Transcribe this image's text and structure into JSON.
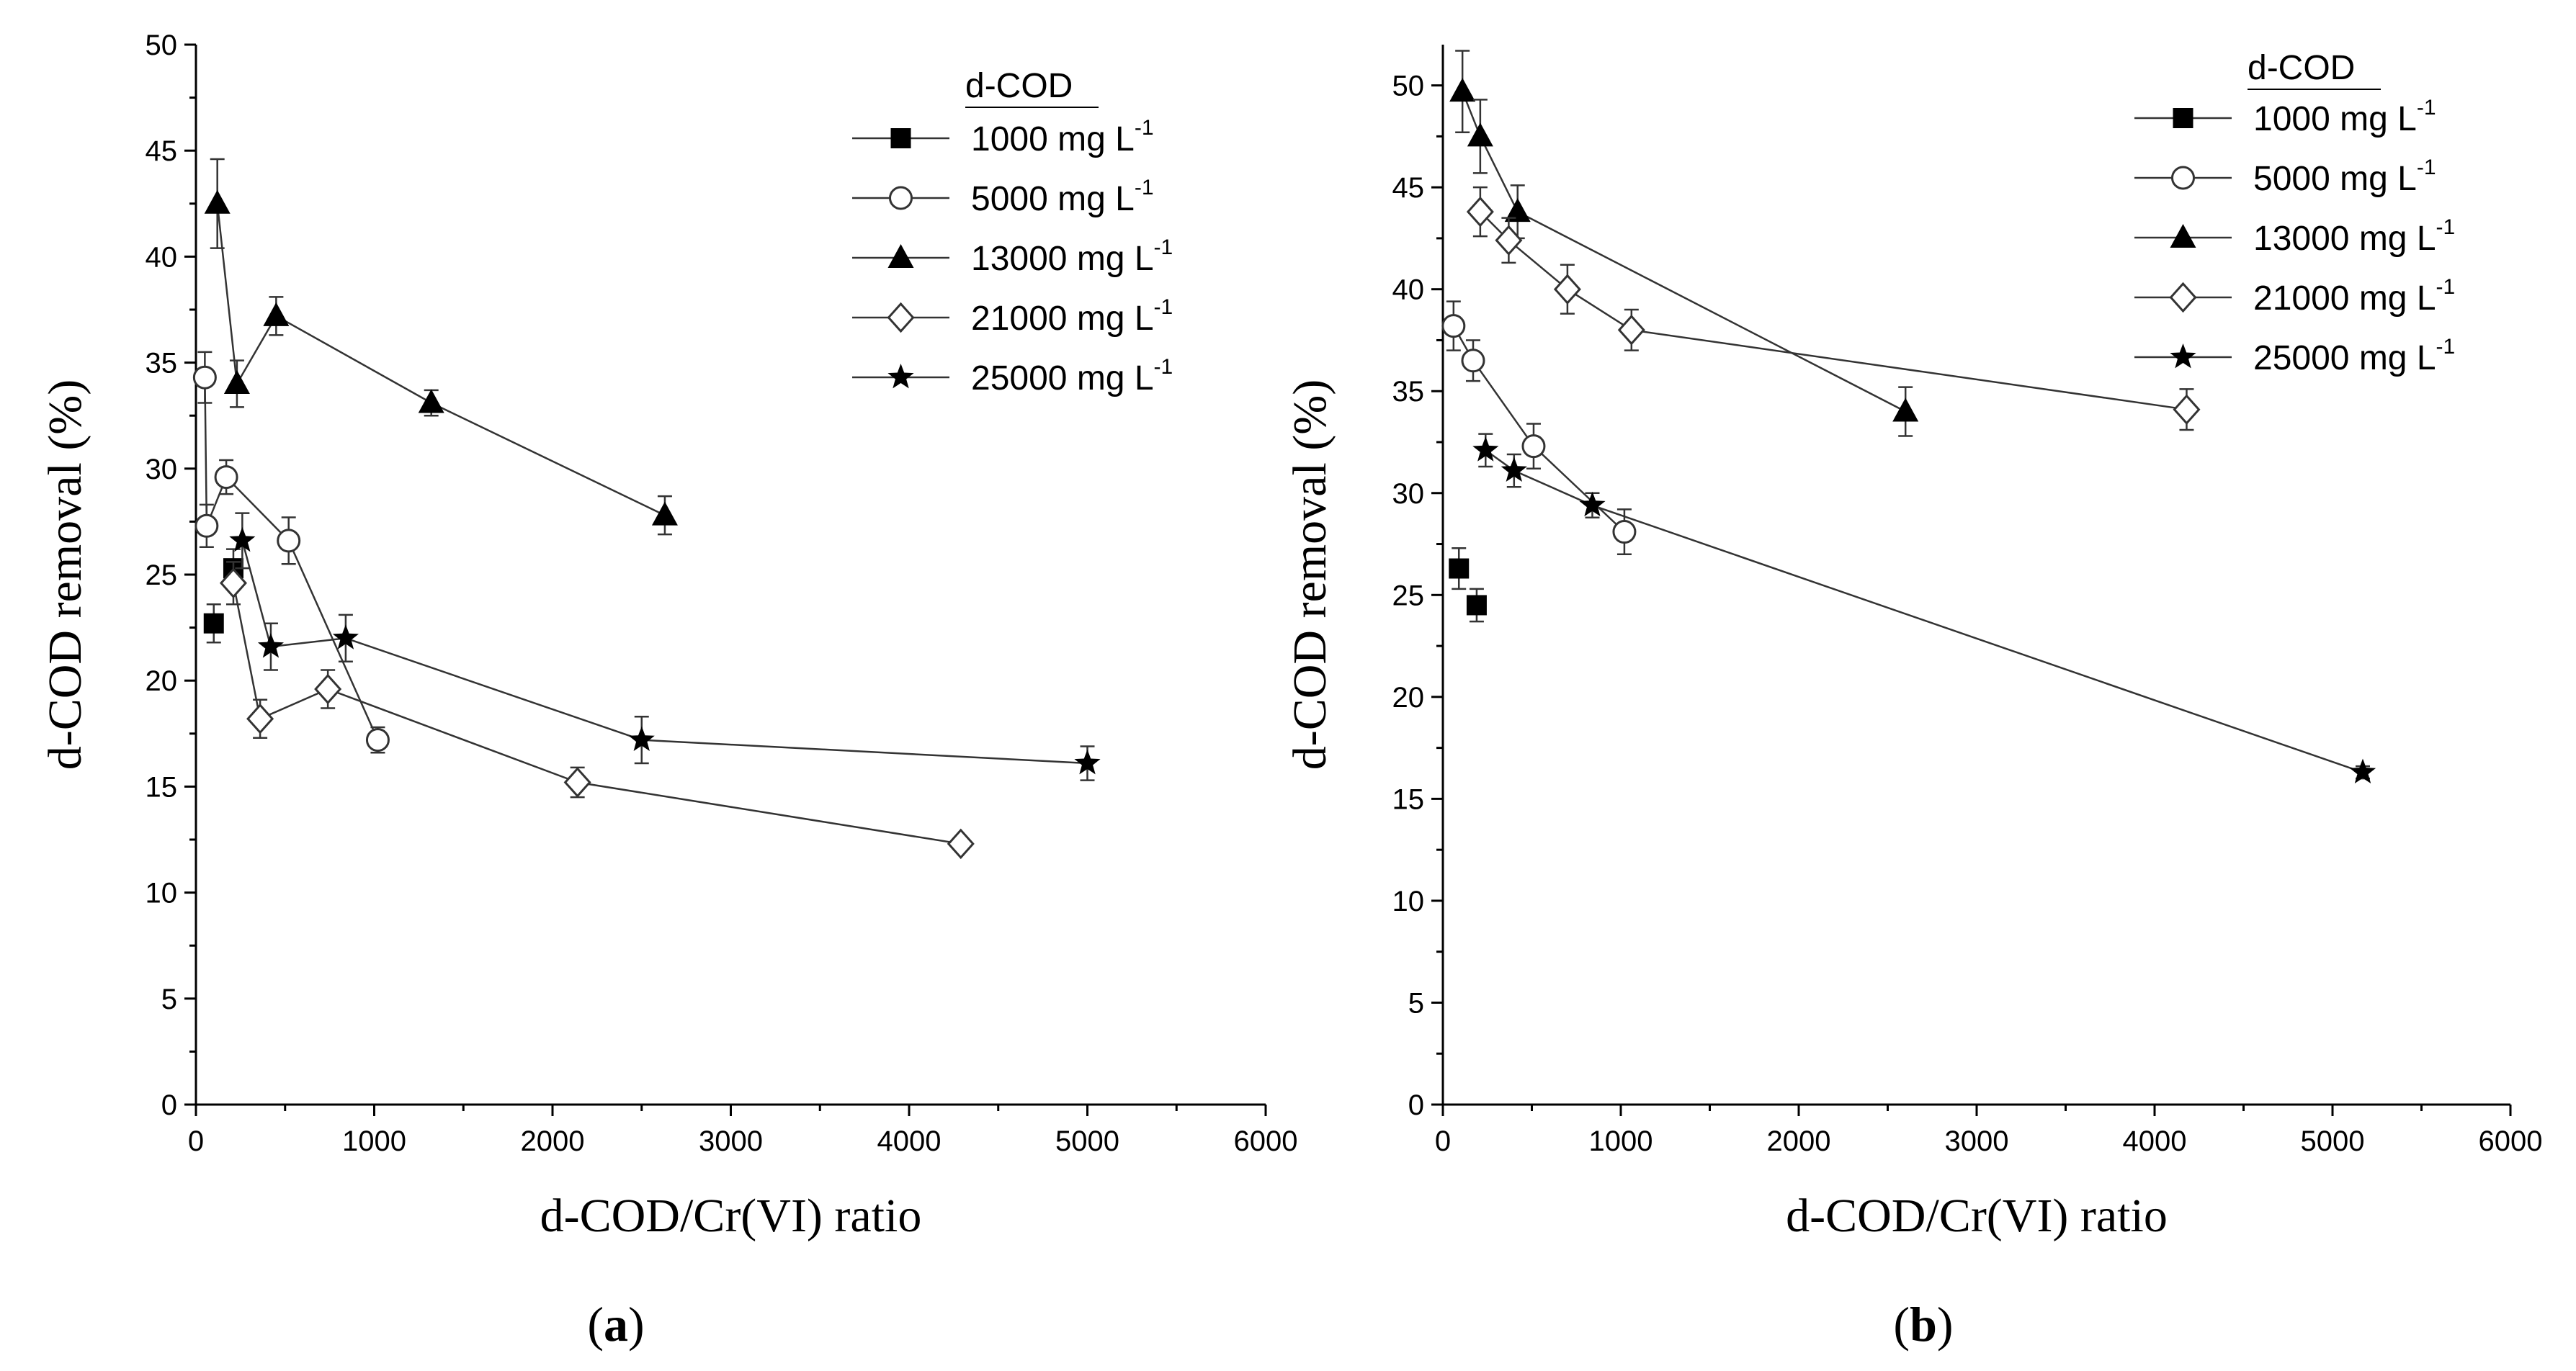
{
  "chart_data": [
    {
      "type": "scatter",
      "panel_label": "(a)",
      "panel_label_parts": [
        "(",
        "a",
        ")"
      ],
      "xlabel": "d-COD/Cr(VI) ratio",
      "ylabel": "d-COD removal (%)",
      "xlim": [
        0,
        6000
      ],
      "ylim": [
        0,
        50
      ],
      "xticks": [
        "0",
        "1000",
        "2000",
        "3000",
        "4000",
        "5000",
        "6000"
      ],
      "yticks": [
        "0",
        "5",
        "10",
        "15",
        "20",
        "25",
        "30",
        "35",
        "40",
        "45",
        "50"
      ],
      "legend_title": "d-COD",
      "series": [
        {
          "name": "1000 mg L-1",
          "label": "1000 mg  L",
          "sup": "-1",
          "marker": "square",
          "connect": false,
          "points": [
            {
              "x": 100,
              "y": 22.7,
              "err": 0.9
            },
            {
              "x": 210,
              "y": 25.3,
              "err": 0.9
            }
          ]
        },
        {
          "name": "5000 mg L-1",
          "label": "5000 mg L",
          "sup": "-1",
          "marker": "circle",
          "connect": true,
          "points": [
            {
              "x": 50,
              "y": 34.3,
              "err": 1.2
            },
            {
              "x": 60,
              "y": 27.3,
              "err": 1.0
            },
            {
              "x": 170,
              "y": 29.6,
              "err": 0.8
            },
            {
              "x": 520,
              "y": 26.6,
              "err": 1.1
            },
            {
              "x": 1020,
              "y": 17.2,
              "err": 0.6
            }
          ]
        },
        {
          "name": "13000 mg L-1",
          "label": "13000 mg  L",
          "sup": "-1",
          "marker": "triangle",
          "connect": true,
          "points": [
            {
              "x": 120,
              "y": 42.5,
              "err": 2.1
            },
            {
              "x": 230,
              "y": 34.0,
              "err": 1.1
            },
            {
              "x": 450,
              "y": 37.2,
              "err": 0.9
            },
            {
              "x": 1320,
              "y": 33.1,
              "err": 0.6
            },
            {
              "x": 2630,
              "y": 27.8,
              "err": 0.9
            }
          ]
        },
        {
          "name": "21000 mg L-1",
          "label": "21000 mg  L",
          "sup": "-1",
          "marker": "diamond",
          "connect": true,
          "points": [
            {
              "x": 210,
              "y": 24.6,
              "err": 1.0
            },
            {
              "x": 360,
              "y": 18.2,
              "err": 0.9
            },
            {
              "x": 740,
              "y": 19.6,
              "err": 0.9
            },
            {
              "x": 2140,
              "y": 15.2,
              "err": 0.7
            },
            {
              "x": 4290,
              "y": 12.3,
              "err": 0.3
            }
          ]
        },
        {
          "name": "25000 mg L-1",
          "label": "25000 mg  L",
          "sup": "-1",
          "marker": "star",
          "connect": true,
          "points": [
            {
              "x": 260,
              "y": 26.6,
              "err": 1.3
            },
            {
              "x": 420,
              "y": 21.6,
              "err": 1.1
            },
            {
              "x": 840,
              "y": 22.0,
              "err": 1.1
            },
            {
              "x": 2500,
              "y": 17.2,
              "err": 1.1
            },
            {
              "x": 5000,
              "y": 16.1,
              "err": 0.8
            }
          ]
        }
      ]
    },
    {
      "type": "scatter",
      "panel_label": "(b)",
      "panel_label_parts": [
        "(",
        "b",
        ")"
      ],
      "xlabel": "d-COD/Cr(VI) ratio",
      "ylabel": "d-COD removal (%)",
      "xlim": [
        0,
        6000
      ],
      "ylim": [
        0,
        52
      ],
      "xticks": [
        "0",
        "1000",
        "2000",
        "3000",
        "4000",
        "5000",
        "6000"
      ],
      "yticks": [
        "0",
        "5",
        "10",
        "15",
        "20",
        "25",
        "30",
        "35",
        "40",
        "45",
        "50"
      ],
      "legend_title": "d-COD",
      "series": [
        {
          "name": "1000 mg L-1",
          "label": "1000 mg  L",
          "sup": "-1",
          "marker": "square",
          "connect": false,
          "points": [
            {
              "x": 90,
              "y": 26.3,
              "err": 1.0
            },
            {
              "x": 190,
              "y": 24.5,
              "err": 0.8
            }
          ]
        },
        {
          "name": "5000 mg L-1",
          "label": "5000 mg  L",
          "sup": "-1",
          "marker": "circle",
          "connect": true,
          "points": [
            {
              "x": 60,
              "y": 38.2,
              "err": 1.2
            },
            {
              "x": 170,
              "y": 36.5,
              "err": 1.0
            },
            {
              "x": 510,
              "y": 32.3,
              "err": 1.1
            },
            {
              "x": 1020,
              "y": 28.1,
              "err": 1.1
            }
          ]
        },
        {
          "name": "13000 mg L-1",
          "label": "13000 mg  L",
          "sup": "-1",
          "marker": "triangle",
          "connect": true,
          "points": [
            {
              "x": 110,
              "y": 49.7,
              "err": 2.0
            },
            {
              "x": 210,
              "y": 47.5,
              "err": 1.8
            },
            {
              "x": 420,
              "y": 43.8,
              "err": 1.3
            },
            {
              "x": 2600,
              "y": 34.0,
              "err": 1.2
            }
          ]
        },
        {
          "name": "21000 mg L-1",
          "label": "21000 mg  L",
          "sup": "-1",
          "marker": "diamond",
          "connect": true,
          "points": [
            {
              "x": 210,
              "y": 43.8,
              "err": 1.2
            },
            {
              "x": 370,
              "y": 42.4,
              "err": 1.1
            },
            {
              "x": 700,
              "y": 40.0,
              "err": 1.2
            },
            {
              "x": 1060,
              "y": 38.0,
              "err": 1.0
            },
            {
              "x": 4180,
              "y": 34.1,
              "err": 1.0
            }
          ]
        },
        {
          "name": "25000 mg L-1",
          "label": "25000 mg  L",
          "sup": "-1",
          "marker": "star",
          "connect": true,
          "points": [
            {
              "x": 240,
              "y": 32.1,
              "err": 0.8
            },
            {
              "x": 400,
              "y": 31.1,
              "err": 0.8
            },
            {
              "x": 840,
              "y": 29.4,
              "err": 0.6
            },
            {
              "x": 5170,
              "y": 16.3,
              "err": 0.3
            }
          ]
        }
      ]
    }
  ]
}
